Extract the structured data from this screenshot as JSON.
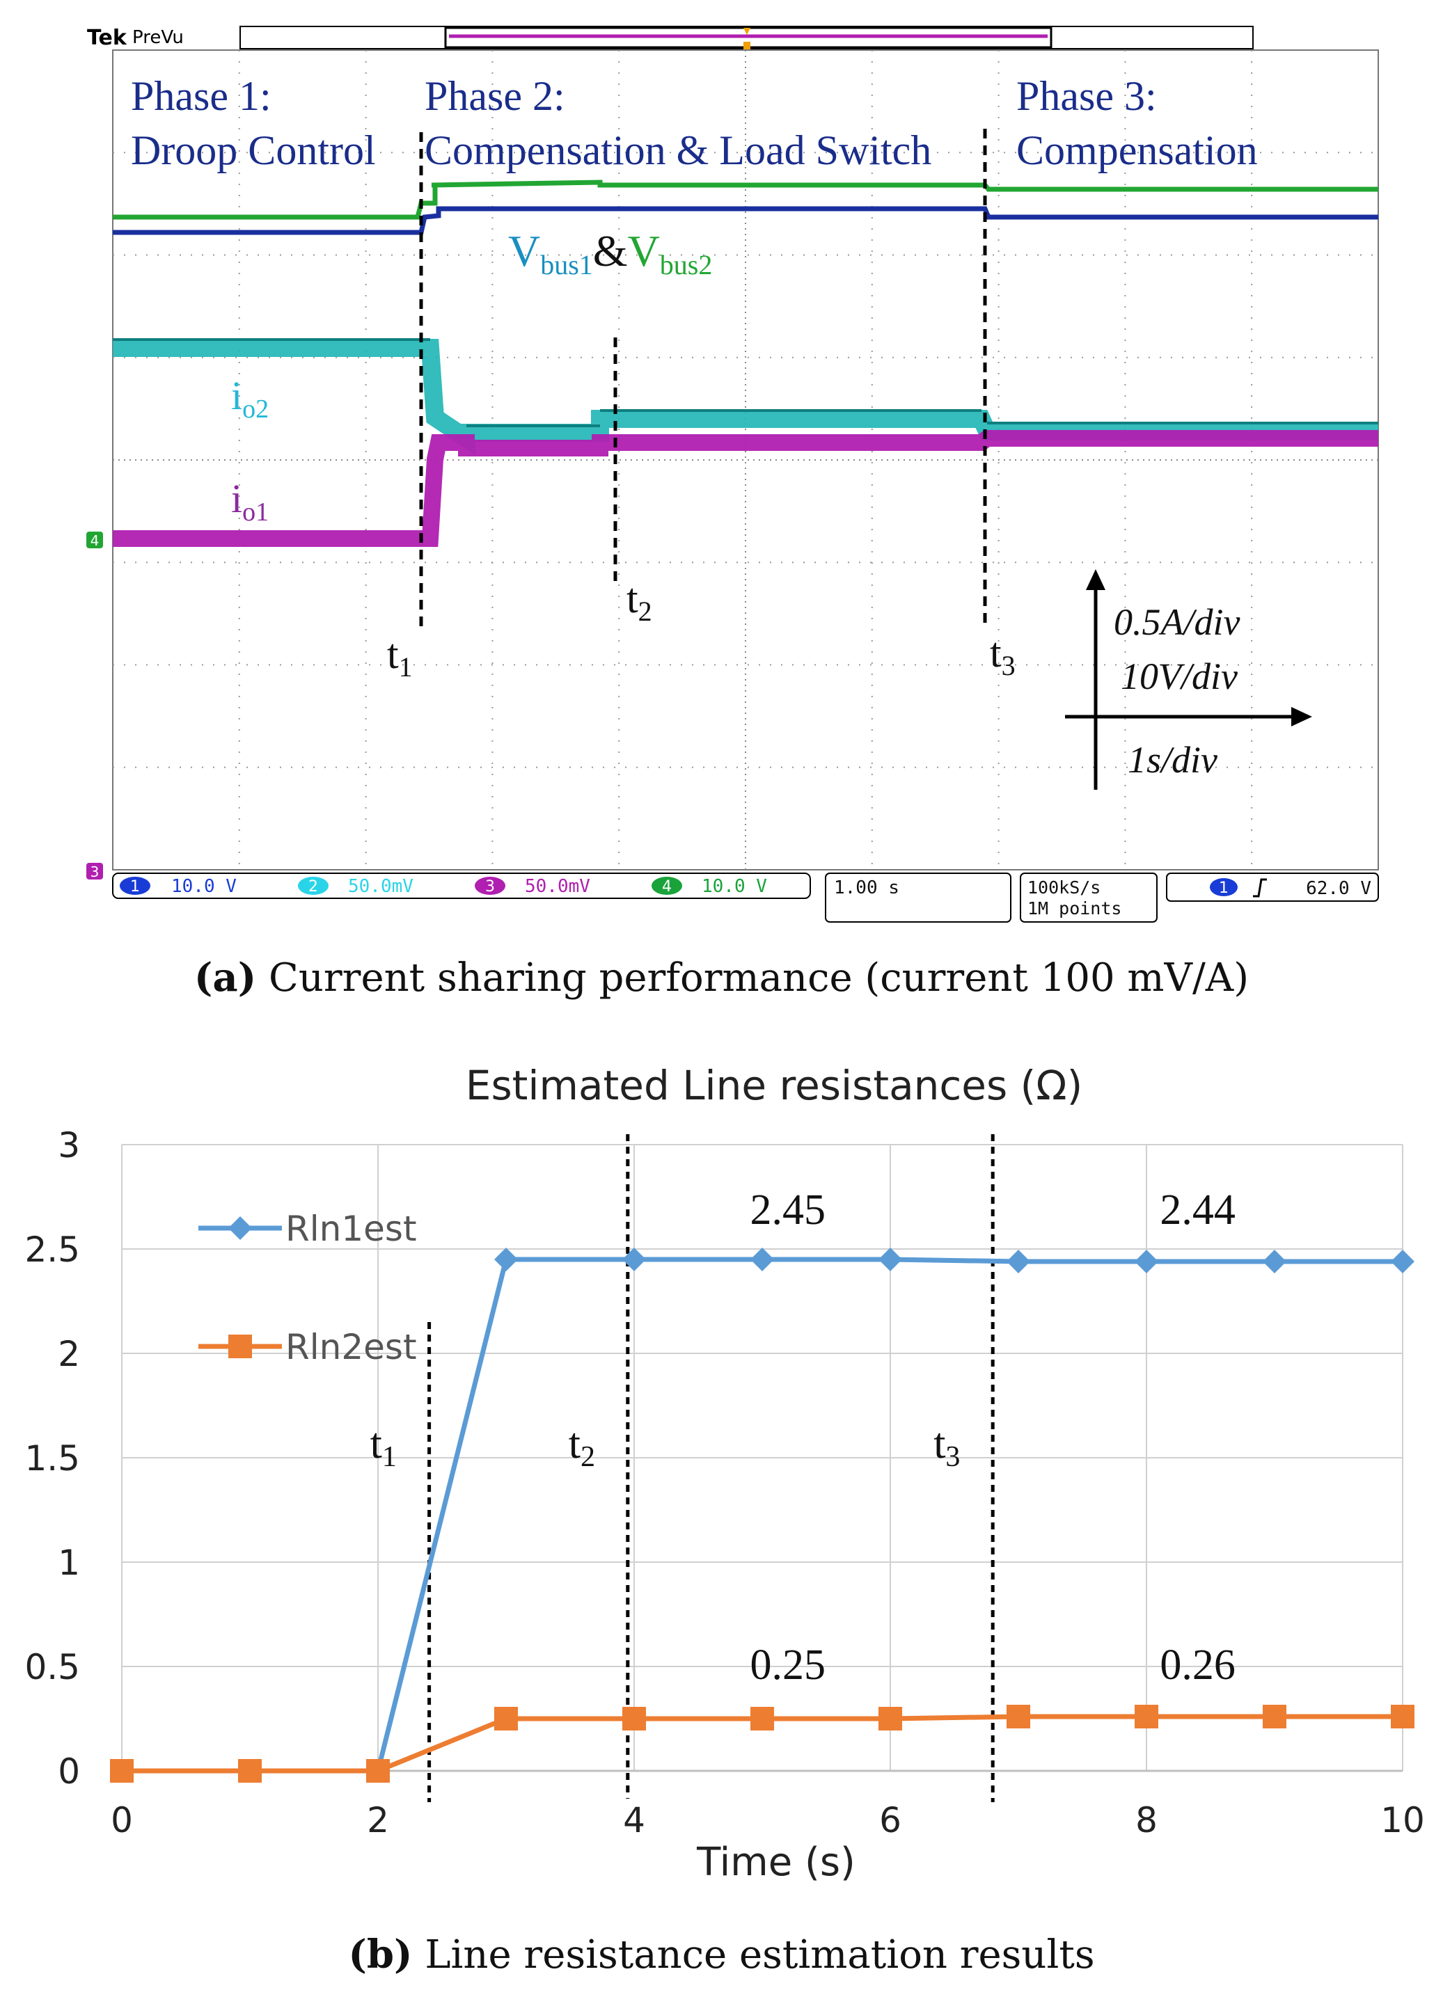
{
  "scope": {
    "brand": "Tek",
    "mode": "PreVu",
    "phases": [
      {
        "line1": "Phase 1:",
        "line2": "Droop Control"
      },
      {
        "line1": "Phase 2:",
        "line2": "Compensation & Load Switch"
      },
      {
        "line1": "Phase 3:",
        "line2": "Compensation"
      }
    ],
    "trace_labels": {
      "vbus1": "V",
      "vbus1_sub": "bus1",
      "amp": "&",
      "vbus2": "V",
      "vbus2_sub": "bus2",
      "io2": "i",
      "io2_sub": "o2",
      "io1": "i",
      "io1_sub": "o1"
    },
    "time_markers": [
      {
        "label": "t",
        "sub": "1"
      },
      {
        "label": "t",
        "sub": "2"
      },
      {
        "label": "t",
        "sub": "3"
      }
    ],
    "scale": {
      "current": "0.5A/div",
      "voltage": "10V/div",
      "time": "1s/div"
    },
    "channels": [
      {
        "num": "1",
        "value": "10.0 V",
        "color": "#1a3cd6"
      },
      {
        "num": "2",
        "value": "50.0mV",
        "color": "#2ad4e8"
      },
      {
        "num": "3",
        "value": "50.0mV",
        "color": "#b01fb0"
      },
      {
        "num": "4",
        "value": "10.0 V",
        "color": "#1aa33a"
      }
    ],
    "timebase": "1.00 s",
    "sample_rate": "100kS/s",
    "record_length": "1M points",
    "trigger": {
      "channel": "1",
      "level": "62.0 V"
    },
    "ground_markers": [
      "4",
      "3"
    ],
    "colors": {
      "vbus1": "#1a2f9e",
      "vbus2": "#22a633",
      "io2": "#1fb5b5",
      "io1": "#b01fb0",
      "label_text": "#1a2d8a",
      "grid": "#999999"
    }
  },
  "caption_a": {
    "letter": "(a)",
    "text": "Current sharing performance (current 100 mV/A)"
  },
  "chart_data": {
    "type": "line",
    "title": "Estimated Line resistances (Ω)",
    "xlabel": "Time (s)",
    "ylabel": "",
    "x": [
      0,
      1,
      2,
      3,
      4,
      5,
      6,
      7,
      8,
      9,
      10
    ],
    "series": [
      {
        "name": "Rln1est",
        "color": "#5b9bd5",
        "marker": "diamond",
        "values": [
          0,
          0,
          0,
          2.45,
          2.45,
          2.45,
          2.45,
          2.44,
          2.44,
          2.44,
          2.44
        ]
      },
      {
        "name": "Rln2est",
        "color": "#ed7d31",
        "marker": "square",
        "values": [
          0,
          0,
          0,
          0.25,
          0.25,
          0.25,
          0.25,
          0.26,
          0.26,
          0.26,
          0.26
        ]
      }
    ],
    "xlim": [
      0,
      10
    ],
    "ylim": [
      0,
      3
    ],
    "xticks": [
      "0",
      "2",
      "4",
      "6",
      "8",
      "10"
    ],
    "yticks": [
      "0",
      "0.5",
      "1",
      "1.5",
      "2",
      "2.5",
      "3"
    ],
    "grid": true,
    "markers": [
      {
        "label": "t",
        "sub": "1",
        "x": 2.4
      },
      {
        "label": "t",
        "sub": "2",
        "x": 3.95
      },
      {
        "label": "t",
        "sub": "3",
        "x": 6.8
      }
    ],
    "annotations": [
      {
        "text": "2.45",
        "x": 5.2,
        "y": 2.62
      },
      {
        "text": "2.44",
        "x": 8.4,
        "y": 2.62
      },
      {
        "text": "0.25",
        "x": 5.2,
        "y": 0.44
      },
      {
        "text": "0.26",
        "x": 8.4,
        "y": 0.44
      }
    ],
    "legend_position": "top-left"
  },
  "caption_b": {
    "letter": "(b)",
    "text": "Line resistance estimation results"
  }
}
